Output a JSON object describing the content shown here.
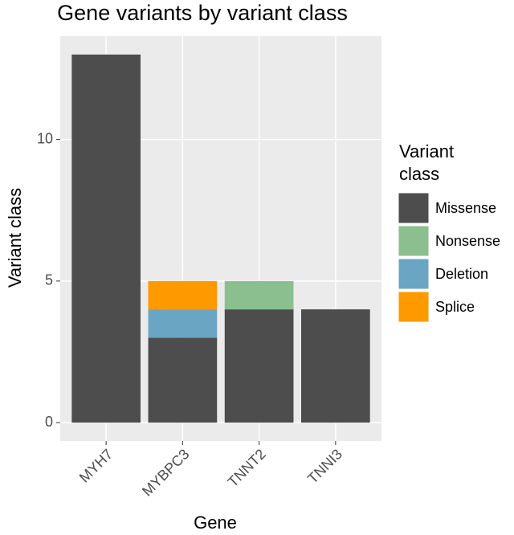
{
  "chart_data": {
    "type": "stacked_bar",
    "title": "Gene variants by variant class",
    "x_label": "Gene",
    "y_label": "Variant class",
    "legend_title": "Variant class",
    "categories": [
      "MYH7",
      "MYBPC3",
      "TNNT2",
      "TNNI3"
    ],
    "series": [
      {
        "name": "Missense",
        "color": "#4d4d4d",
        "values": [
          13,
          3,
          4,
          4
        ]
      },
      {
        "name": "Nonsense",
        "color": "#8cbf8f",
        "values": [
          0,
          0,
          1,
          0
        ]
      },
      {
        "name": "Deletion",
        "color": "#6aa6c4",
        "values": [
          0,
          1,
          0,
          0
        ]
      },
      {
        "name": "Splice",
        "color": "#ff9900",
        "values": [
          0,
          1,
          0,
          0
        ]
      }
    ],
    "ylim": [
      -0.65,
      13.65
    ],
    "yticks": [
      0,
      5,
      10
    ],
    "grid": true
  }
}
